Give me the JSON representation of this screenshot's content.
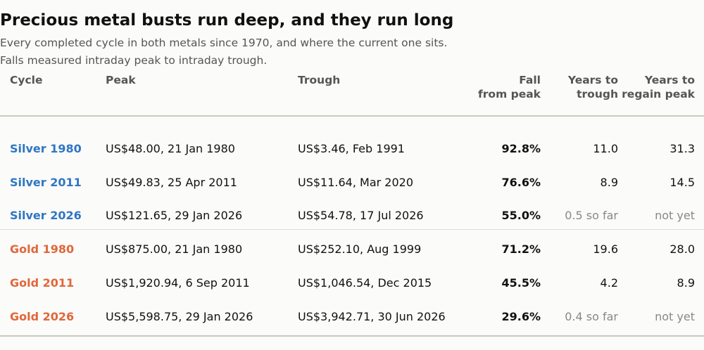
{
  "header": {
    "title": "Precious metal busts run deep, and they run long",
    "subtitle": [
      "Every completed cycle in both metals since 1970, and where the current one sits.",
      "Falls measured intraday peak to intraday trough."
    ]
  },
  "table": {
    "columns": [
      [
        "Cycle"
      ],
      [
        "Peak"
      ],
      [
        "Trough"
      ],
      [
        "Fall",
        "from peak"
      ],
      [
        "Years to",
        "trough"
      ],
      [
        "Years to",
        "regain peak"
      ]
    ],
    "rows": [
      [
        "Silver 1980",
        "US$48.00, 21 Jan 1980",
        "US$3.46, Feb 1991",
        "92.8%",
        "11.0",
        "31.3"
      ],
      [
        "Silver 2011",
        "US$49.83, 25 Apr 2011",
        "US$11.64, Mar 2020",
        "76.6%",
        "8.9",
        "14.5"
      ],
      [
        "Silver 2026",
        "US$121.65, 29 Jan 2026",
        "US$54.78, 17 Jul 2026",
        "55.0%",
        "0.5 so far",
        "not yet"
      ],
      [
        "Gold 1980",
        "US$875.00, 21 Jan 1980",
        "US$252.10, Aug 1999",
        "71.2%",
        "19.6",
        "28.0"
      ],
      [
        "Gold 2011",
        "US$1,920.94, 6 Sep 2011",
        "US$1,046.54, Dec 2015",
        "45.5%",
        "4.2",
        "8.9"
      ],
      [
        "Gold 2026",
        "US$5,598.75, 29 Jan 2026",
        "US$3,942.71, 30 Jun 2026",
        "29.6%",
        "0.4 so far",
        "not yet"
      ]
    ]
  }
}
